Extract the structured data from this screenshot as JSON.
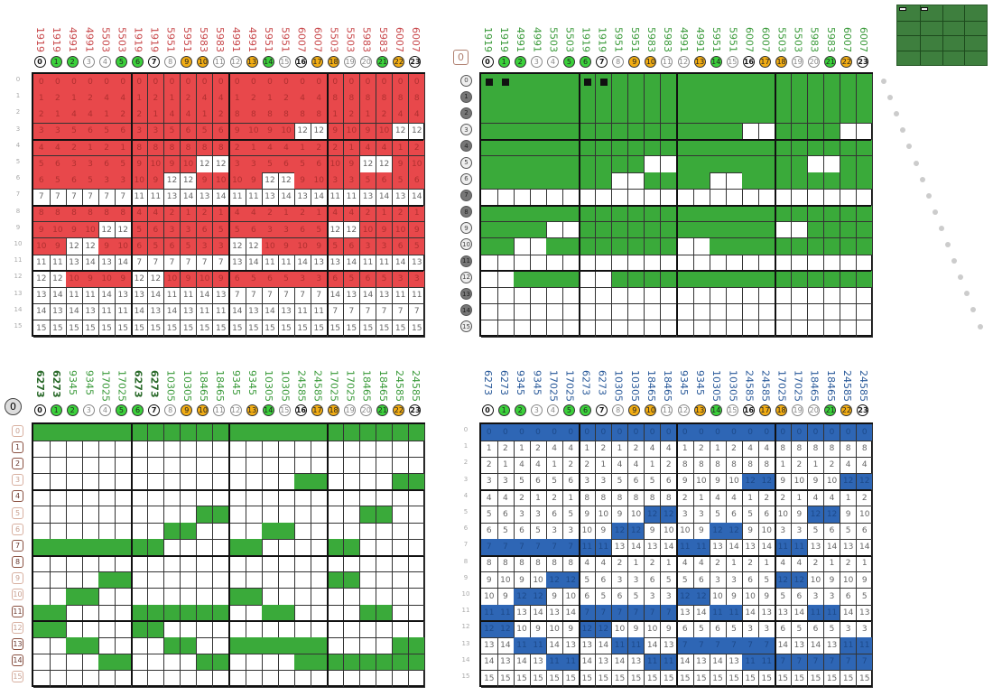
{
  "corner_labels": {
    "top_right": "0",
    "bottom_left": "0"
  },
  "colors": {
    "red": "#e8484b",
    "green": "#3aaa3a",
    "blue": "#2e66b5",
    "orange": "#f2ad14",
    "bright_green": "#3bd13b"
  },
  "column_indices": [
    "0",
    "1",
    "2",
    "3",
    "4",
    "5",
    "6",
    "7",
    "8",
    "9",
    "10",
    "11",
    "12",
    "13",
    "14",
    "15",
    "16",
    "17",
    "18",
    "19",
    "20",
    "21",
    "22",
    "23"
  ],
  "column_index_styles": [
    "bold",
    "green",
    "green",
    "plain",
    "plain",
    "green",
    "green",
    "bold",
    "plain",
    "orange",
    "orange",
    "plain",
    "plain",
    "orange",
    "green",
    "plain",
    "bold",
    "orange",
    "orange",
    "plain",
    "plain",
    "green",
    "orange",
    "bold"
  ],
  "row_indices": [
    "0",
    "1",
    "2",
    "3",
    "4",
    "5",
    "6",
    "7",
    "8",
    "9",
    "10",
    "11",
    "12",
    "13",
    "14",
    "15"
  ],
  "row_index_dark": [
    false,
    true,
    true,
    false,
    true,
    false,
    false,
    true,
    true,
    false,
    false,
    true,
    false,
    true,
    true,
    false
  ],
  "headers_top": [
    "1919",
    "1919",
    "4991",
    "4991",
    "5503",
    "5503",
    "1919",
    "1919",
    "5951",
    "5951",
    "5983",
    "5983",
    "4991",
    "4991",
    "5951",
    "5951",
    "6007",
    "6007",
    "5503",
    "5503",
    "5983",
    "5983",
    "6007",
    "6007"
  ],
  "headers_bottom": [
    "6273",
    "6273",
    "9345",
    "9345",
    "17025",
    "17025",
    "6273",
    "6273",
    "10305",
    "10305",
    "18465",
    "18465",
    "9345",
    "9345",
    "10305",
    "10305",
    "24585",
    "24585",
    "17025",
    "17025",
    "18465",
    "18465",
    "24585",
    "24585"
  ],
  "matrix": [
    [
      0,
      0,
      0,
      0,
      0,
      0,
      0,
      0,
      0,
      0,
      0,
      0,
      0,
      0,
      0,
      0,
      0,
      0,
      0,
      0,
      0,
      0,
      0,
      0
    ],
    [
      1,
      2,
      1,
      2,
      4,
      4,
      1,
      2,
      1,
      2,
      4,
      4,
      1,
      2,
      1,
      2,
      4,
      4,
      8,
      8,
      8,
      8,
      8,
      8
    ],
    [
      2,
      1,
      4,
      4,
      1,
      2,
      2,
      1,
      4,
      4,
      1,
      2,
      8,
      8,
      8,
      8,
      8,
      8,
      1,
      2,
      1,
      2,
      4,
      4
    ],
    [
      3,
      3,
      5,
      6,
      5,
      6,
      3,
      3,
      5,
      6,
      5,
      6,
      9,
      10,
      9,
      10,
      12,
      12,
      9,
      10,
      9,
      10,
      12,
      12
    ],
    [
      4,
      4,
      2,
      1,
      2,
      1,
      8,
      8,
      8,
      8,
      8,
      8,
      2,
      1,
      4,
      4,
      1,
      2,
      2,
      1,
      4,
      4,
      1,
      2
    ],
    [
      5,
      6,
      3,
      3,
      6,
      5,
      9,
      10,
      9,
      10,
      12,
      12,
      3,
      3,
      5,
      6,
      5,
      6,
      10,
      9,
      12,
      12,
      9,
      10
    ],
    [
      6,
      5,
      6,
      5,
      3,
      3,
      10,
      9,
      12,
      12,
      9,
      10,
      10,
      9,
      12,
      12,
      9,
      10,
      3,
      3,
      5,
      6,
      5,
      6
    ],
    [
      7,
      7,
      7,
      7,
      7,
      7,
      11,
      11,
      13,
      14,
      13,
      14,
      11,
      11,
      13,
      14,
      13,
      14,
      11,
      11,
      13,
      14,
      13,
      14
    ],
    [
      8,
      8,
      8,
      8,
      8,
      8,
      4,
      4,
      2,
      1,
      2,
      1,
      4,
      4,
      2,
      1,
      2,
      1,
      4,
      4,
      2,
      1,
      2,
      1
    ],
    [
      9,
      10,
      9,
      10,
      12,
      12,
      5,
      6,
      3,
      3,
      6,
      5,
      5,
      6,
      3,
      3,
      6,
      5,
      12,
      12,
      10,
      9,
      10,
      9
    ],
    [
      10,
      9,
      12,
      12,
      9,
      10,
      6,
      5,
      6,
      5,
      3,
      3,
      12,
      12,
      10,
      9,
      10,
      9,
      5,
      6,
      3,
      3,
      6,
      5
    ],
    [
      11,
      11,
      13,
      14,
      13,
      14,
      7,
      7,
      7,
      7,
      7,
      7,
      13,
      14,
      11,
      11,
      14,
      13,
      13,
      14,
      11,
      11,
      14,
      13
    ],
    [
      12,
      12,
      10,
      9,
      10,
      9,
      12,
      12,
      10,
      9,
      10,
      9,
      6,
      5,
      6,
      5,
      3,
      3,
      6,
      5,
      6,
      5,
      3,
      3
    ],
    [
      13,
      14,
      11,
      11,
      14,
      13,
      13,
      14,
      11,
      11,
      14,
      13,
      7,
      7,
      7,
      7,
      7,
      7,
      14,
      13,
      14,
      13,
      11,
      11
    ],
    [
      14,
      13,
      14,
      13,
      11,
      11,
      14,
      13,
      14,
      13,
      11,
      11,
      14,
      13,
      14,
      13,
      11,
      11,
      7,
      7,
      7,
      7,
      7,
      7
    ],
    [
      15,
      15,
      15,
      15,
      15,
      15,
      15,
      15,
      15,
      15,
      15,
      15,
      15,
      15,
      15,
      15,
      15,
      15,
      15,
      15,
      15,
      15,
      15,
      15
    ]
  ],
  "panels": [
    {
      "name": "top-left",
      "headers": "headers_top",
      "header_color": "#c8474a",
      "fill": "#e8484b",
      "fill_values": [
        0,
        1,
        2,
        3,
        4,
        5,
        6,
        8,
        9,
        10
      ],
      "show_numbers": true,
      "row_style": "plain",
      "marked_cells": []
    },
    {
      "name": "top-right",
      "headers": "headers_top",
      "header_color": "#3a9a3a",
      "fill": "#3aaa3a",
      "fill_values": [
        0,
        1,
        2,
        3,
        4,
        5,
        6,
        8,
        9,
        10
      ],
      "show_numbers": false,
      "row_style": "circle",
      "marked_cells": [
        [
          0,
          0
        ],
        [
          0,
          1
        ],
        [
          0,
          6
        ],
        [
          0,
          7
        ]
      ]
    },
    {
      "name": "bottom-left",
      "headers": "headers_bottom",
      "header_color": "#3a9a3a",
      "fill": "#3aaa3a",
      "fill_values": [
        0,
        7,
        11,
        12
      ],
      "show_numbers": false,
      "row_style": "box",
      "marked_cells": []
    },
    {
      "name": "bottom-right",
      "headers": "headers_bottom",
      "header_color": "#2a5a9a",
      "fill": "#2e66b5",
      "fill_values": [
        0,
        7,
        11,
        12
      ],
      "show_numbers": true,
      "row_style": "plain",
      "marked_cells": []
    }
  ]
}
